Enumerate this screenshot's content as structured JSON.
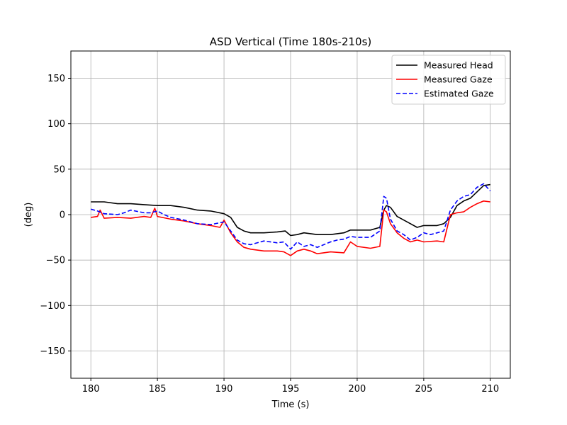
{
  "chart_data": {
    "type": "line",
    "title": "ASD Vertical (Time 180s-210s)",
    "xlabel": "Time (s)",
    "ylabel": "(deg)",
    "xlim": [
      178.5,
      211.5
    ],
    "ylim": [
      -180,
      180
    ],
    "xticks": [
      180,
      185,
      190,
      195,
      200,
      205,
      210
    ],
    "yticks": [
      -150,
      -100,
      -50,
      0,
      50,
      100,
      150
    ],
    "xtick_labels": [
      "180",
      "185",
      "190",
      "195",
      "200",
      "205",
      "210"
    ],
    "ytick_labels": [
      "−150",
      "−100",
      "−50",
      "0",
      "50",
      "100",
      "150"
    ],
    "grid": true,
    "legend_position": "top-right",
    "series": [
      {
        "name": "Measured Head",
        "color": "#000000",
        "dash": "solid",
        "points": [
          [
            180,
            14
          ],
          [
            181,
            14
          ],
          [
            182,
            12
          ],
          [
            183,
            12
          ],
          [
            184,
            11
          ],
          [
            185,
            10
          ],
          [
            186,
            10
          ],
          [
            187,
            8
          ],
          [
            188,
            5
          ],
          [
            189,
            4
          ],
          [
            190,
            1
          ],
          [
            190.5,
            -3
          ],
          [
            191,
            -14
          ],
          [
            191.5,
            -18
          ],
          [
            192,
            -20
          ],
          [
            193,
            -20
          ],
          [
            194,
            -19
          ],
          [
            194.6,
            -18
          ],
          [
            195,
            -23
          ],
          [
            195.5,
            -22
          ],
          [
            196,
            -20
          ],
          [
            196.5,
            -21
          ],
          [
            197,
            -22
          ],
          [
            198,
            -22
          ],
          [
            199,
            -20
          ],
          [
            199.5,
            -17
          ],
          [
            200,
            -17
          ],
          [
            201,
            -17
          ],
          [
            201.7,
            -14
          ],
          [
            202,
            5
          ],
          [
            202.2,
            10
          ],
          [
            202.5,
            8
          ],
          [
            203,
            -2
          ],
          [
            203.5,
            -6
          ],
          [
            204,
            -10
          ],
          [
            204.5,
            -14
          ],
          [
            205,
            -12
          ],
          [
            206,
            -12
          ],
          [
            206.5,
            -10
          ],
          [
            207,
            -3
          ],
          [
            207.5,
            10
          ],
          [
            208,
            15
          ],
          [
            208.5,
            18
          ],
          [
            209,
            25
          ],
          [
            209.5,
            32
          ],
          [
            210,
            33
          ]
        ]
      },
      {
        "name": "Measured Gaze",
        "color": "#ff0000",
        "dash": "solid",
        "points": [
          [
            180,
            -3
          ],
          [
            180.5,
            -2
          ],
          [
            180.7,
            5
          ],
          [
            181,
            -4
          ],
          [
            182,
            -3
          ],
          [
            183,
            -4
          ],
          [
            184,
            -2
          ],
          [
            184.5,
            -3
          ],
          [
            184.8,
            7
          ],
          [
            185,
            -2
          ],
          [
            186,
            -5
          ],
          [
            187,
            -7
          ],
          [
            188,
            -10
          ],
          [
            189,
            -12
          ],
          [
            189.7,
            -14
          ],
          [
            190,
            -6
          ],
          [
            190.5,
            -20
          ],
          [
            191,
            -30
          ],
          [
            191.5,
            -36
          ],
          [
            192,
            -38
          ],
          [
            193,
            -40
          ],
          [
            194,
            -40
          ],
          [
            194.5,
            -41
          ],
          [
            195,
            -45
          ],
          [
            195.5,
            -40
          ],
          [
            196,
            -38
          ],
          [
            196.5,
            -40
          ],
          [
            197,
            -43
          ],
          [
            198,
            -41
          ],
          [
            199,
            -42
          ],
          [
            199.5,
            -30
          ],
          [
            200,
            -35
          ],
          [
            201,
            -37
          ],
          [
            201.7,
            -35
          ],
          [
            202,
            5
          ],
          [
            202.2,
            3
          ],
          [
            202.5,
            -10
          ],
          [
            203,
            -20
          ],
          [
            203.5,
            -26
          ],
          [
            204,
            -30
          ],
          [
            204.5,
            -28
          ],
          [
            205,
            -30
          ],
          [
            206,
            -29
          ],
          [
            206.5,
            -30
          ],
          [
            207,
            0
          ],
          [
            207.5,
            2
          ],
          [
            208,
            3
          ],
          [
            208.5,
            8
          ],
          [
            209,
            12
          ],
          [
            209.5,
            15
          ],
          [
            210,
            14
          ]
        ]
      },
      {
        "name": "Estimated Gaze",
        "color": "#0000ff",
        "dash": "dashed",
        "points": [
          [
            180,
            6
          ],
          [
            180.5,
            4
          ],
          [
            181,
            1
          ],
          [
            182,
            0
          ],
          [
            182.5,
            2
          ],
          [
            183,
            5
          ],
          [
            184,
            2
          ],
          [
            184.5,
            2
          ],
          [
            185,
            4
          ],
          [
            185.5,
            0
          ],
          [
            186,
            -3
          ],
          [
            187,
            -6
          ],
          [
            188,
            -10
          ],
          [
            189,
            -11
          ],
          [
            190,
            -8
          ],
          [
            190.5,
            -18
          ],
          [
            191,
            -28
          ],
          [
            191.5,
            -32
          ],
          [
            192,
            -33
          ],
          [
            193,
            -29
          ],
          [
            194,
            -31
          ],
          [
            194.5,
            -30
          ],
          [
            195,
            -38
          ],
          [
            195.5,
            -30
          ],
          [
            196,
            -35
          ],
          [
            196.5,
            -33
          ],
          [
            197,
            -36
          ],
          [
            198,
            -30
          ],
          [
            198.5,
            -28
          ],
          [
            199,
            -27
          ],
          [
            199.5,
            -24
          ],
          [
            200,
            -25
          ],
          [
            201,
            -25
          ],
          [
            201.7,
            -18
          ],
          [
            202,
            20
          ],
          [
            202.2,
            18
          ],
          [
            202.5,
            -5
          ],
          [
            203,
            -18
          ],
          [
            203.5,
            -22
          ],
          [
            204,
            -28
          ],
          [
            204.5,
            -25
          ],
          [
            205,
            -20
          ],
          [
            205.5,
            -22
          ],
          [
            206,
            -20
          ],
          [
            206.5,
            -18
          ],
          [
            207,
            5
          ],
          [
            207.5,
            15
          ],
          [
            208,
            20
          ],
          [
            208.5,
            22
          ],
          [
            209,
            30
          ],
          [
            209.5,
            34
          ],
          [
            210,
            26
          ]
        ]
      }
    ]
  }
}
